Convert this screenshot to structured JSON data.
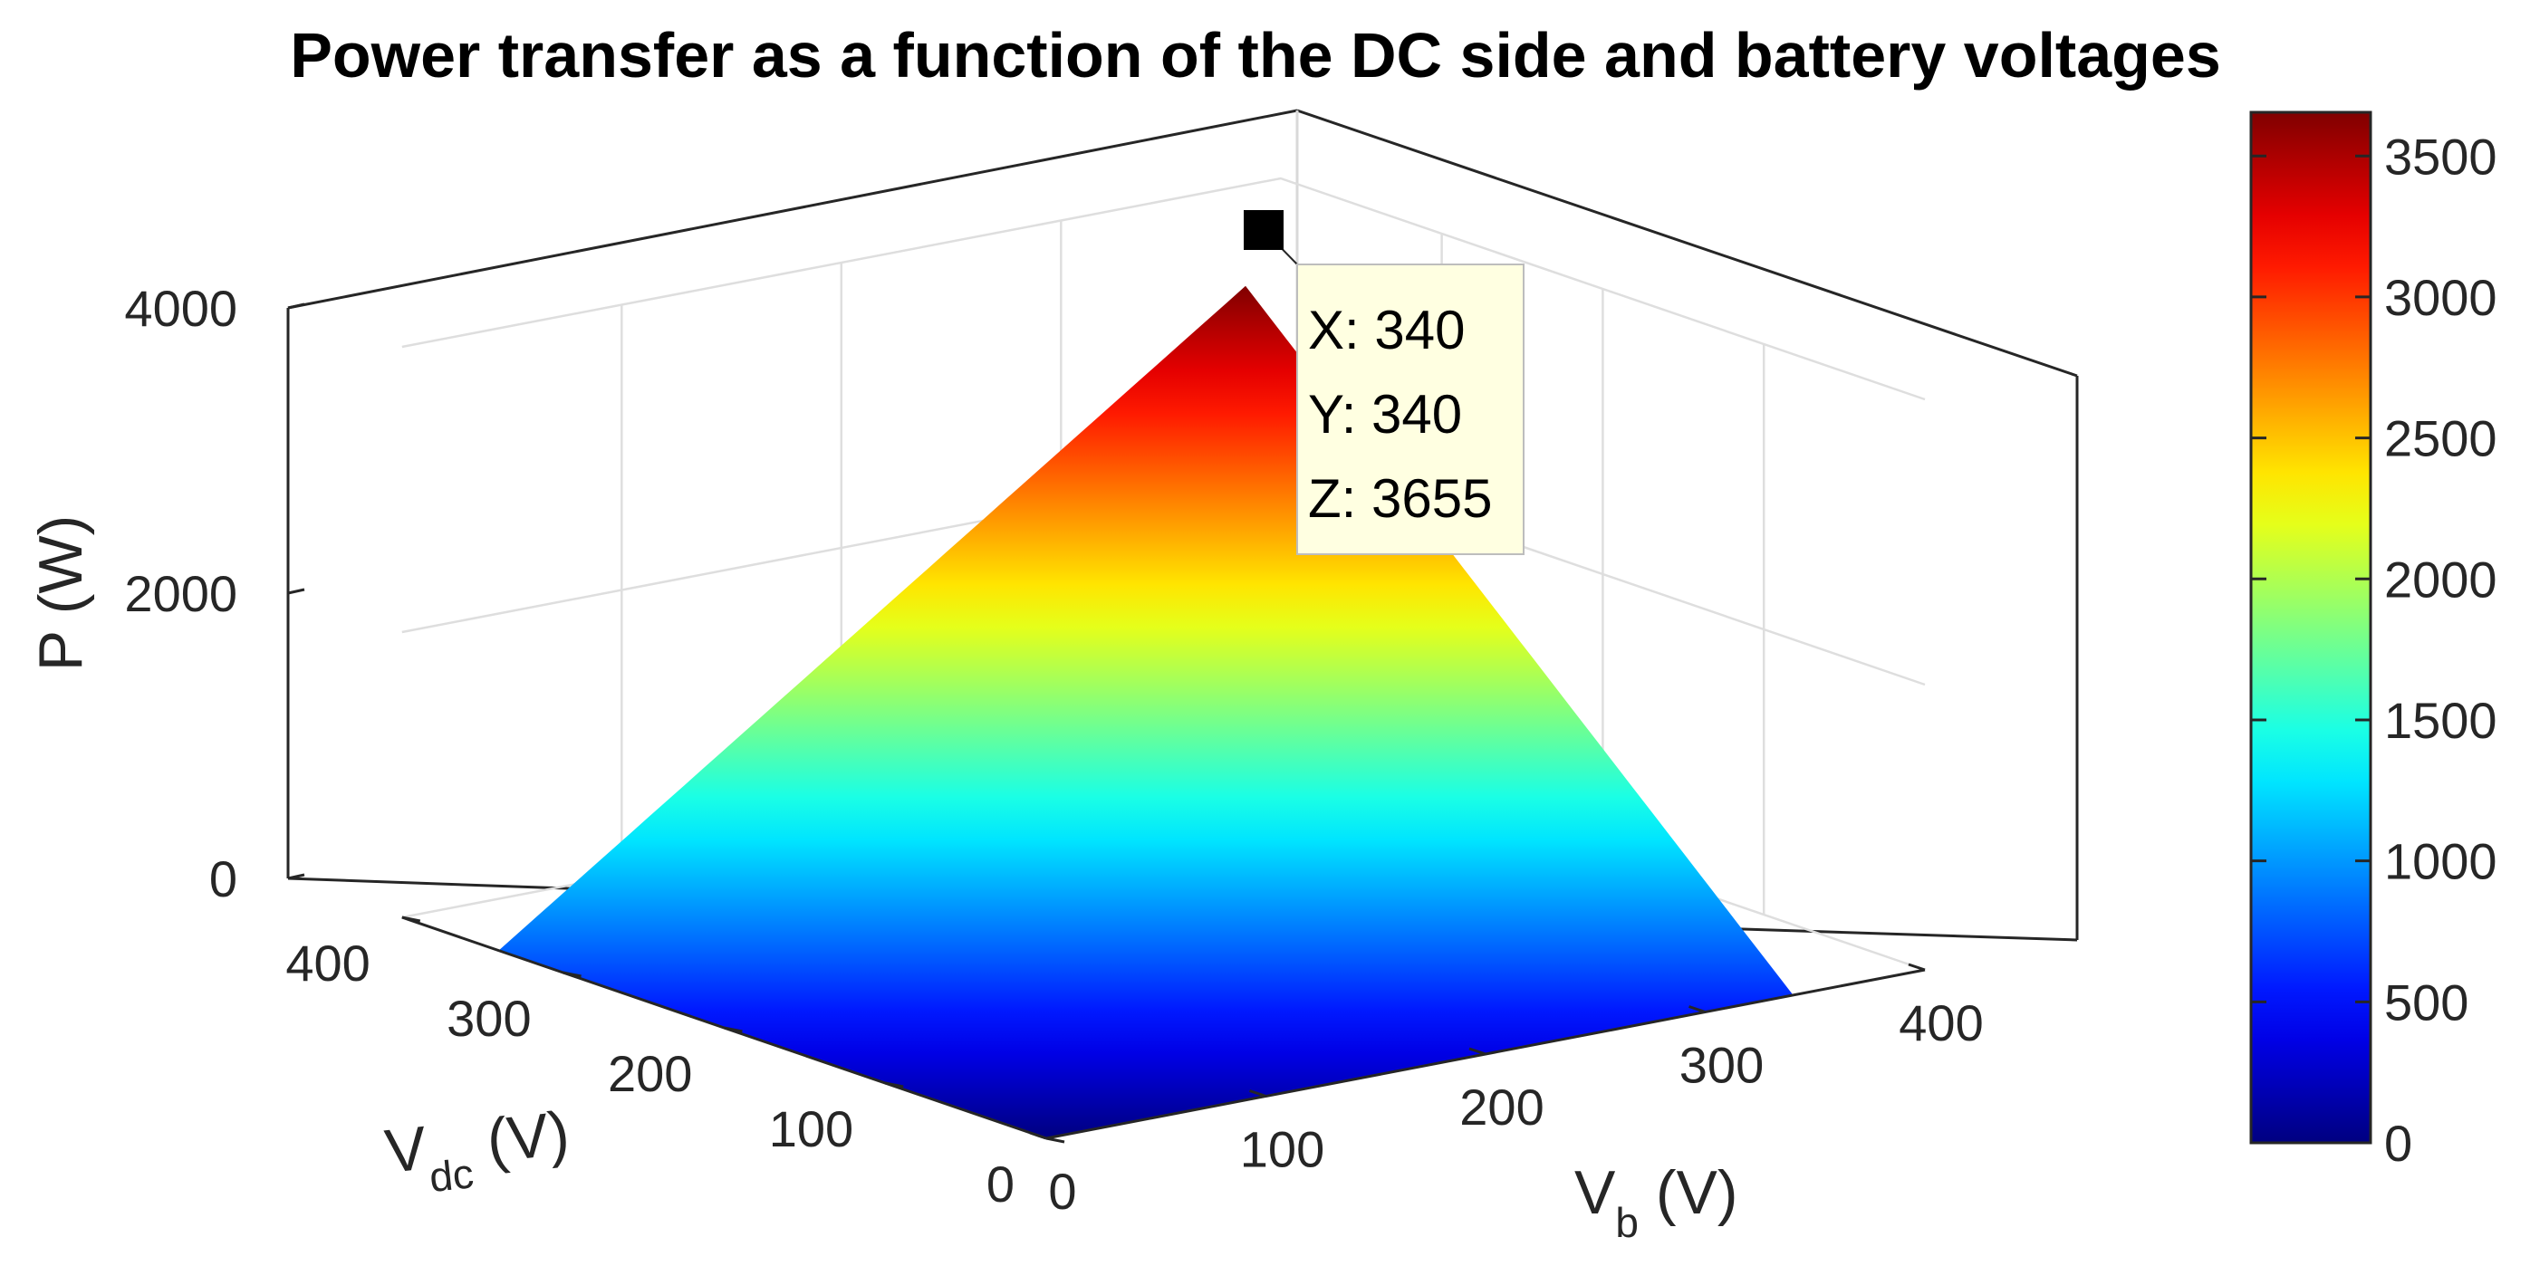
{
  "chart_data": {
    "type": "surface",
    "title": "Power transfer as a function of the DC side and battery voltages",
    "zlabel": "P (W)",
    "vdc_label": {
      "main": "V",
      "sub": "dc",
      "tail": " (V)"
    },
    "vb_label": {
      "main": "V",
      "sub": "b",
      "tail": " (V)"
    },
    "x_axis": {
      "range": [
        0,
        400
      ],
      "ticks": [
        "0",
        "100",
        "200",
        "300",
        "400"
      ]
    },
    "y_axis": {
      "range": [
        0,
        400
      ],
      "ticks": [
        "0",
        "100",
        "200",
        "300",
        "400"
      ]
    },
    "z_axis": {
      "range": [
        0,
        4000
      ],
      "ticks": [
        "0",
        "2000",
        "4000"
      ]
    },
    "surface": {
      "x_range": [
        0,
        340
      ],
      "y_range": [
        0,
        340
      ],
      "formula": "Z = 3655 * (X/340) * (Y/340)",
      "z_max": 3655,
      "colormap": "jet"
    },
    "colorbar": {
      "range": [
        0,
        3655
      ],
      "ticks": [
        "0",
        "500",
        "1000",
        "1500",
        "2000",
        "2500",
        "3000",
        "3500"
      ]
    },
    "datatip": {
      "x_text": "X: 340",
      "y_text": "Y: 340",
      "z_text": "Z: 3655"
    },
    "grid": true,
    "colors": {
      "axis": "#262626",
      "grid": "#d9d9d9",
      "tip_bg": "#ffffe1",
      "marker": "#000000"
    }
  }
}
